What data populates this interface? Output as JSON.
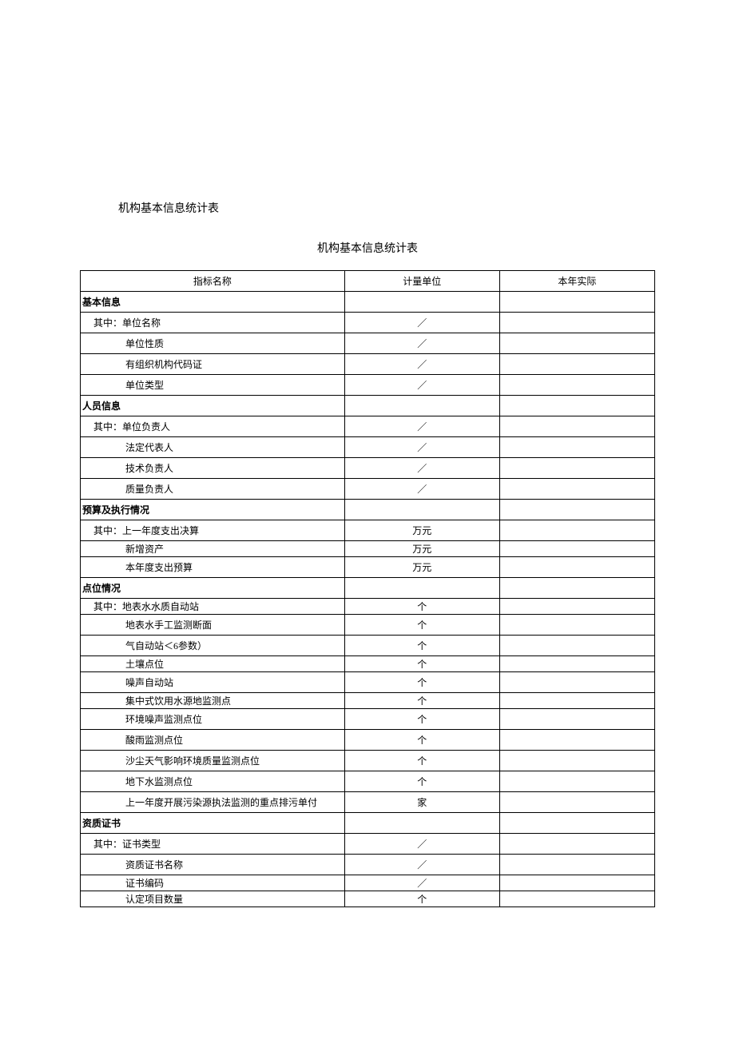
{
  "doc_title": "机构基本信息统计表",
  "table_title": "机构基本信息统计表",
  "headers": {
    "name": "指标名称",
    "unit": "计量单位",
    "actual": "本年实际"
  },
  "sections": [
    {
      "title": "基本信息",
      "rows": [
        {
          "label": "其中：单位名称",
          "unit": "／",
          "indent": 1
        },
        {
          "label": "单位性质",
          "unit": "／",
          "indent": 2
        },
        {
          "label": "有组织机构代码证",
          "unit": "／",
          "indent": 2
        },
        {
          "label": "单位类型",
          "unit": "／",
          "indent": 2
        }
      ]
    },
    {
      "title": "人员信息",
      "rows": [
        {
          "label": "其中：单位负责人",
          "unit": "／",
          "indent": 1
        },
        {
          "label": "法定代表人",
          "unit": "／",
          "indent": 2
        },
        {
          "label": "技术负责人",
          "unit": "／",
          "indent": 2
        },
        {
          "label": "质量负责人",
          "unit": "／",
          "indent": 2
        }
      ]
    },
    {
      "title": "预算及执行情况",
      "rows": [
        {
          "label": "其中：上一年度支出决算",
          "unit": "万元",
          "indent": 1
        },
        {
          "label": "新增资产",
          "unit": "万元",
          "indent": 2,
          "short": true
        },
        {
          "label": "本年度支出预算",
          "unit": "万元",
          "indent": 2
        }
      ]
    },
    {
      "title": "点位情况",
      "rows": [
        {
          "label": "其中：地表水水质自动站",
          "unit": "个",
          "indent": 1,
          "short": true
        },
        {
          "label": "地表水手工监测断面",
          "unit": "个",
          "indent": 2
        },
        {
          "label": "气自动站＜6参数）",
          "unit": "个",
          "indent": 2
        },
        {
          "label": "土壤点位",
          "unit": "个",
          "indent": 2,
          "short": true
        },
        {
          "label": "噪声自动站",
          "unit": "个",
          "indent": 2
        },
        {
          "label": "集中式饮用水源地监测点",
          "unit": "个",
          "indent": 2,
          "short": true
        },
        {
          "label": "环境噪声监测点位",
          "unit": "个",
          "indent": 2
        },
        {
          "label": "酸雨监测点位",
          "unit": "个",
          "indent": 2
        },
        {
          "label": "沙尘天气影响环境质量监测点位",
          "unit": "个",
          "indent": 2
        },
        {
          "label": "地下水监测点位",
          "unit": "个",
          "indent": 2
        },
        {
          "label": "上一年度开展污染源执法监测的重点排污单付",
          "unit": "家",
          "indent": 2
        }
      ]
    },
    {
      "title": "资质证书",
      "rows": [
        {
          "label": "其中：证书类型",
          "unit": "／",
          "indent": 1
        },
        {
          "label": "资质证书名称",
          "unit": "／",
          "indent": 2
        },
        {
          "label": "证书编码",
          "unit": "／",
          "indent": 2,
          "short": true
        },
        {
          "label": "认定项目数量",
          "unit": "个",
          "indent": 2,
          "short": true
        }
      ]
    }
  ]
}
